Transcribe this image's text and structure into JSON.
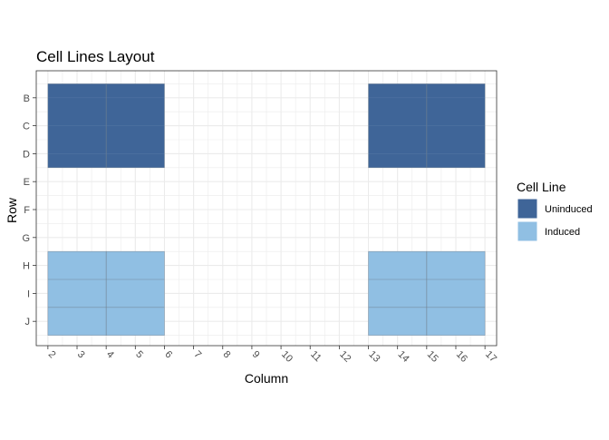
{
  "chart_data": {
    "type": "heatmap",
    "title": "Cell Lines Layout",
    "xlabel": "Column",
    "ylabel": "Row",
    "x_ticks": [
      2,
      3,
      4,
      5,
      6,
      7,
      8,
      9,
      10,
      11,
      12,
      13,
      14,
      15,
      16,
      17
    ],
    "xlim": [
      1.6,
      17.4
    ],
    "y_ticks": [
      "B",
      "C",
      "D",
      "E",
      "F",
      "G",
      "H",
      "I",
      "J"
    ],
    "grid": true,
    "legend": {
      "title": "Cell Line",
      "position": "right",
      "entries": [
        {
          "label": "Uninduced",
          "color": "#3f6598"
        },
        {
          "label": "Induced",
          "color": "#90bfe3"
        }
      ]
    },
    "tiles": [
      {
        "group": "Uninduced",
        "x": [
          2,
          4
        ],
        "rows": [
          "B",
          "D"
        ]
      },
      {
        "group": "Uninduced",
        "x": [
          4,
          6
        ],
        "rows": [
          "B",
          "D"
        ]
      },
      {
        "group": "Uninduced",
        "x": [
          13,
          15
        ],
        "rows": [
          "B",
          "D"
        ]
      },
      {
        "group": "Uninduced",
        "x": [
          15,
          17
        ],
        "rows": [
          "B",
          "D"
        ]
      },
      {
        "group": "Induced",
        "x": [
          2,
          4
        ],
        "rows": [
          "H",
          "J"
        ]
      },
      {
        "group": "Induced",
        "x": [
          4,
          6
        ],
        "rows": [
          "H",
          "J"
        ]
      },
      {
        "group": "Induced",
        "x": [
          13,
          15
        ],
        "rows": [
          "H",
          "J"
        ]
      },
      {
        "group": "Induced",
        "x": [
          15,
          17
        ],
        "rows": [
          "H",
          "J"
        ]
      }
    ],
    "colors": {
      "panel_border": "#333333",
      "grid": "#ebebeb",
      "tile_stroke": "#6f7f8f"
    }
  }
}
